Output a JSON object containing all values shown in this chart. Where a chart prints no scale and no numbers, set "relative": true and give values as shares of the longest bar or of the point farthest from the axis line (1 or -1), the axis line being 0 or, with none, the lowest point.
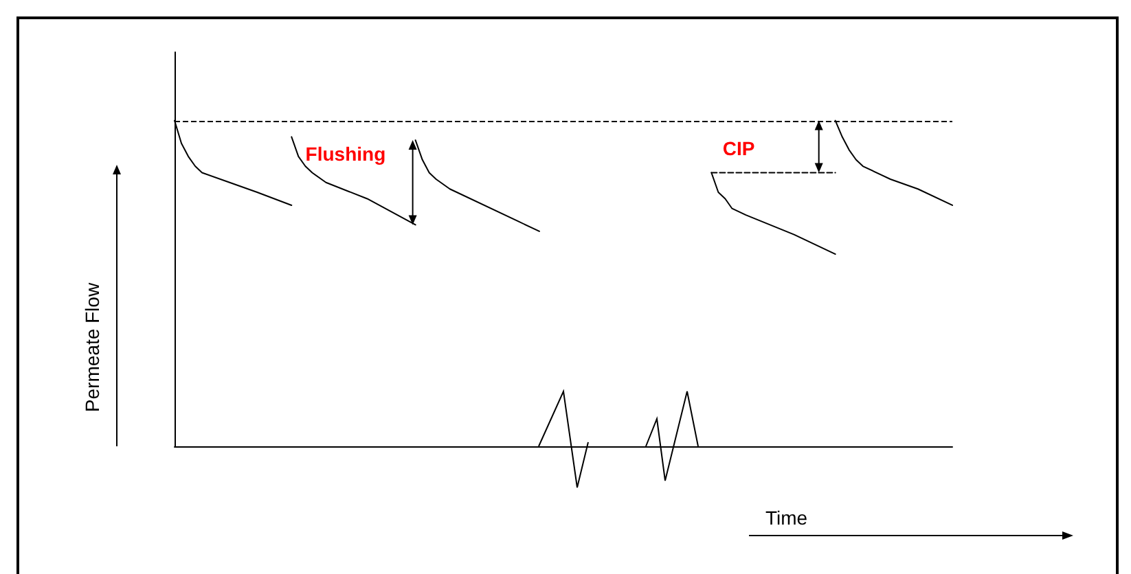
{
  "chart_data": {
    "type": "line",
    "relative": true,
    "xlabel": "Time",
    "ylabel": "Permeate Flow",
    "grid": false,
    "categories": [
      null,
      null,
      null,
      null,
      null,
      null,
      null,
      null,
      null,
      null,
      null,
      null,
      null,
      null,
      null,
      null,
      null,
      null,
      null,
      null,
      null,
      null,
      null,
      null,
      null,
      null,
      null,
      null,
      null,
      null,
      null,
      null,
      null,
      null,
      null,
      null,
      null,
      null,
      null,
      null,
      null,
      null,
      null,
      null,
      null,
      null,
      null,
      null,
      null,
      null,
      null,
      null,
      null,
      null,
      null,
      null,
      null,
      null,
      null,
      null,
      null,
      null,
      null,
      null,
      null,
      null,
      null,
      null,
      null,
      null,
      null,
      null,
      null,
      null,
      null,
      null,
      null,
      null,
      null,
      null,
      null,
      null,
      null,
      null,
      null,
      null,
      null,
      null,
      null,
      null,
      null,
      null,
      null,
      null,
      null,
      null,
      null,
      null,
      null,
      null,
      null,
      null,
      null,
      null,
      null,
      null,
      null,
      null,
      null,
      null,
      null,
      null,
      null,
      null
    ],
    "series": [
      {
        "color": "#000000",
        "values": [
          1.0,
          0.93,
          0.89,
          0.86,
          0.84,
          null,
          null,
          null,
          0.81,
          null,
          null,
          null,
          0.78,
          null,
          null,
          null,
          null,
          0.74,
          null,
          null,
          null,
          null,
          null,
          null,
          null,
          null,
          null,
          null,
          null,
          null,
          null,
          null,
          null,
          null,
          null,
          null,
          null,
          null,
          null,
          null,
          null,
          null,
          null,
          null,
          null,
          null,
          null,
          null,
          null,
          null,
          null,
          null,
          null,
          null,
          null,
          null,
          null,
          null,
          null,
          null,
          null,
          null,
          null,
          null,
          null,
          null,
          null,
          null,
          null,
          null,
          null,
          null,
          null,
          null,
          null,
          null,
          null,
          null,
          null,
          null,
          null,
          null,
          null,
          null,
          null,
          null,
          null,
          null,
          null,
          null,
          null,
          null,
          null,
          null,
          null,
          null,
          null,
          null,
          null,
          null,
          null,
          null,
          null,
          null,
          null,
          null,
          null,
          null,
          null,
          null,
          null,
          null,
          null,
          null
        ]
      },
      {
        "color": "#000000",
        "values": [
          null,
          null,
          null,
          null,
          null,
          null,
          null,
          null,
          null,
          null,
          null,
          null,
          null,
          null,
          null,
          null,
          null,
          0.95,
          0.89,
          0.86,
          0.84,
          null,
          0.81,
          null,
          null,
          null,
          null,
          null,
          0.76,
          null,
          null,
          null,
          null,
          null,
          null,
          0.68,
          null,
          null,
          null,
          null,
          null,
          null,
          null,
          null,
          null,
          null,
          null,
          null,
          null,
          null,
          null,
          null,
          null,
          null,
          null,
          null,
          null,
          null,
          null,
          null,
          null,
          null,
          null,
          null,
          null,
          null,
          null,
          null,
          null,
          null,
          null,
          null,
          null,
          null,
          null,
          null,
          null,
          null,
          null,
          null,
          null,
          null,
          null,
          null,
          null,
          null,
          null,
          null,
          null,
          null,
          null,
          null,
          null,
          null,
          null,
          null,
          null,
          null,
          null,
          null,
          null,
          null,
          null,
          null,
          null,
          null,
          null,
          null,
          null,
          null,
          null,
          null,
          null,
          null
        ]
      },
      {
        "color": "#000000",
        "values": [
          null,
          null,
          null,
          null,
          null,
          null,
          null,
          null,
          null,
          null,
          null,
          null,
          null,
          null,
          null,
          null,
          null,
          null,
          null,
          null,
          null,
          null,
          null,
          null,
          null,
          null,
          null,
          null,
          null,
          null,
          null,
          null,
          null,
          null,
          null,
          0.94,
          0.88,
          0.84,
          0.82,
          null,
          0.79,
          null,
          null,
          null,
          null,
          null,
          null,
          null,
          null,
          null,
          0.69,
          null,
          null,
          0.66,
          null,
          null,
          null,
          null,
          null,
          null,
          null,
          null,
          null,
          null,
          null,
          null,
          null,
          null,
          null,
          null,
          null,
          null,
          null,
          null,
          null,
          null,
          null,
          null,
          null,
          null,
          null,
          null,
          null,
          null,
          null,
          null,
          null,
          null,
          null,
          null,
          null,
          null,
          null,
          null,
          null,
          null,
          null,
          null,
          null,
          null,
          null,
          null,
          null,
          null,
          null,
          null,
          null,
          null,
          null,
          null,
          null,
          null,
          null,
          null
        ]
      },
      {
        "color": "#000000",
        "values": [
          null,
          null,
          null,
          null,
          null,
          null,
          null,
          null,
          null,
          null,
          null,
          null,
          null,
          null,
          null,
          null,
          null,
          null,
          null,
          null,
          null,
          null,
          null,
          null,
          null,
          null,
          null,
          null,
          null,
          null,
          null,
          null,
          null,
          null,
          null,
          null,
          null,
          null,
          null,
          null,
          null,
          null,
          null,
          null,
          null,
          null,
          null,
          null,
          null,
          null,
          null,
          null,
          null,
          null,
          null,
          null,
          null,
          null,
          null,
          null,
          null,
          null,
          null,
          null,
          null,
          null,
          null,
          null,
          null,
          null,
          null,
          null,
          null,
          null,
          null,
          null,
          null,
          null,
          0.84,
          0.78,
          0.76,
          0.73,
          null,
          0.71,
          null,
          null,
          null,
          null,
          null,
          null,
          0.65,
          null,
          null,
          null,
          null,
          null,
          0.59,
          null,
          null,
          null,
          null,
          null,
          null,
          null,
          null,
          null,
          null,
          null,
          null,
          null,
          null,
          null,
          null,
          null
        ]
      },
      {
        "color": "#000000",
        "values": [
          null,
          null,
          null,
          null,
          null,
          null,
          null,
          null,
          null,
          null,
          null,
          null,
          null,
          null,
          null,
          null,
          null,
          null,
          null,
          null,
          null,
          null,
          null,
          null,
          null,
          null,
          null,
          null,
          null,
          null,
          null,
          null,
          null,
          null,
          null,
          null,
          null,
          null,
          null,
          null,
          null,
          null,
          null,
          null,
          null,
          null,
          null,
          null,
          null,
          null,
          null,
          null,
          null,
          null,
          null,
          null,
          null,
          null,
          null,
          null,
          null,
          null,
          null,
          null,
          null,
          null,
          null,
          null,
          null,
          null,
          null,
          null,
          null,
          null,
          null,
          null,
          null,
          null,
          null,
          null,
          null,
          null,
          null,
          null,
          null,
          null,
          null,
          null,
          null,
          null,
          null,
          null,
          null,
          null,
          null,
          null,
          1.0,
          0.95,
          0.91,
          0.88,
          0.86,
          null,
          null,
          null,
          0.82,
          null,
          null,
          null,
          0.79,
          null,
          null,
          null,
          null,
          0.74
        ]
      },
      {
        "color": "#000000",
        "line_style": "dashed",
        "values": [
          null,
          null,
          null,
          null,
          null,
          null,
          null,
          null,
          null,
          null,
          null,
          null,
          null,
          null,
          null,
          null,
          null,
          null,
          null,
          null,
          null,
          null,
          null,
          null,
          null,
          null,
          null,
          null,
          null,
          null,
          null,
          null,
          null,
          null,
          null,
          null,
          null,
          null,
          null,
          null,
          null,
          null,
          null,
          null,
          null,
          null,
          null,
          null,
          null,
          null,
          null,
          null,
          null,
          null,
          null,
          null,
          null,
          null,
          null,
          null,
          null,
          null,
          null,
          null,
          null,
          null,
          null,
          null,
          null,
          null,
          null,
          null,
          null,
          null,
          null,
          null,
          null,
          null,
          0.84,
          null,
          null,
          null,
          null,
          null,
          null,
          null,
          null,
          null,
          null,
          null,
          null,
          null,
          null,
          null,
          null,
          null,
          0.84,
          null,
          null,
          null,
          null,
          null,
          null,
          null,
          null,
          null,
          null,
          null,
          null,
          null,
          null,
          null,
          null,
          null
        ]
      }
    ],
    "ref_lines": [
      {
        "axis": "y",
        "value": 1,
        "line_style": "dashed",
        "color": "#000000"
      }
    ],
    "annotations": [
      "Flushing",
      "CIP"
    ]
  }
}
